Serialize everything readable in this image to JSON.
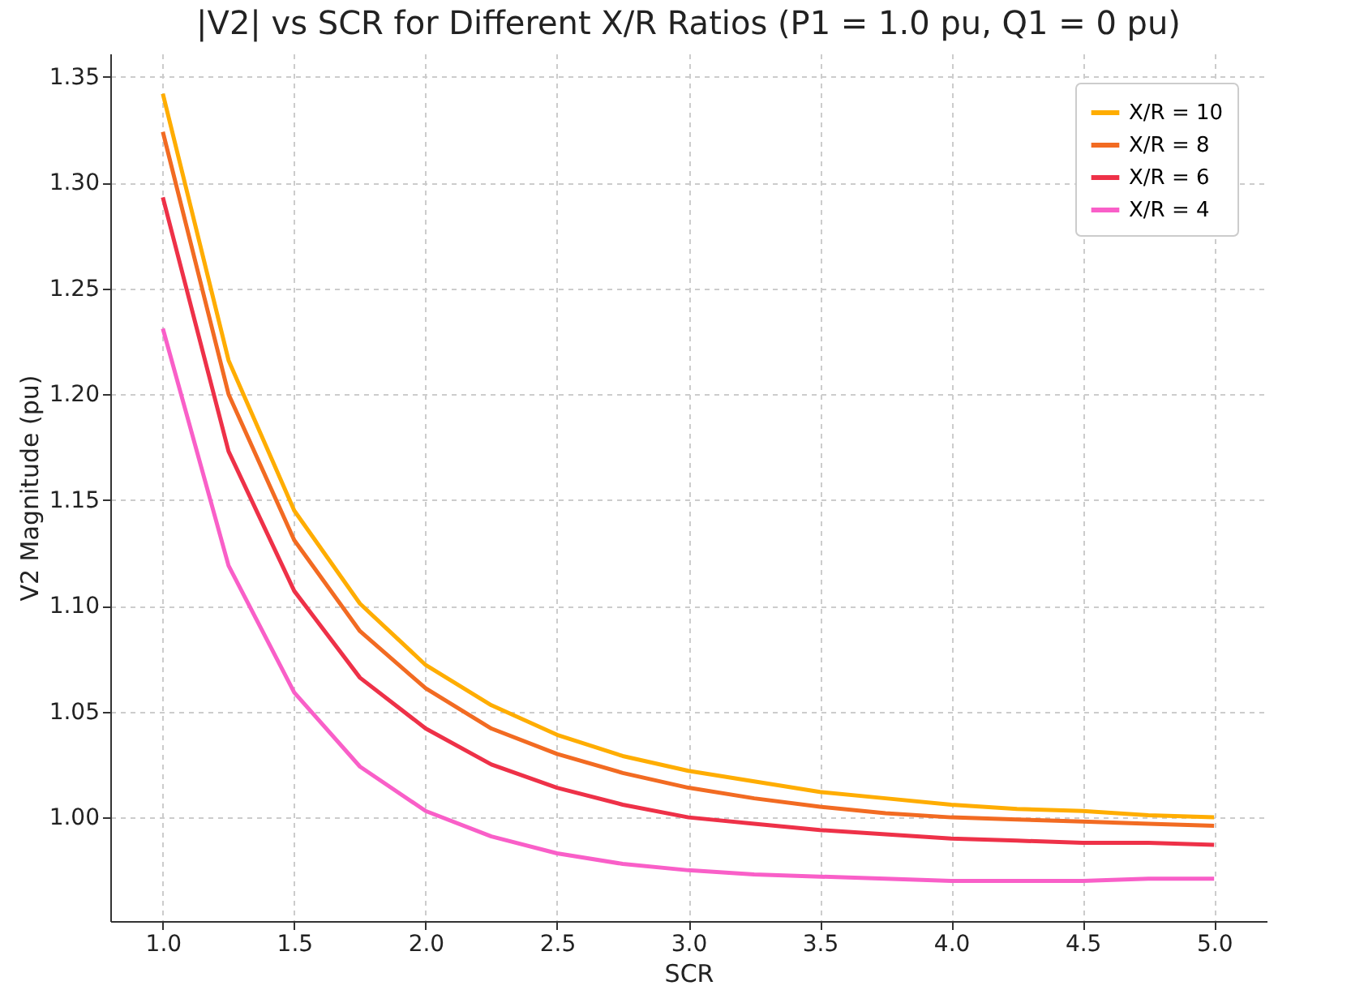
{
  "chart_data": {
    "type": "line",
    "title": "|V2| vs SCR for Different X/R Ratios (P1 = 1.0 pu, Q1 = 0 pu)",
    "xlabel": "SCR",
    "ylabel": "V2 Magnitude (pu)",
    "x": [
      1.0,
      1.25,
      1.5,
      1.75,
      2.0,
      2.25,
      2.5,
      2.75,
      3.0,
      3.25,
      3.5,
      3.75,
      4.0,
      4.25,
      4.5,
      4.75,
      5.0
    ],
    "series": [
      {
        "name": "X/R = 10",
        "color": "#ffad00",
        "values": [
          1.342,
          1.216,
          1.145,
          1.101,
          1.072,
          1.053,
          1.039,
          1.029,
          1.022,
          1.017,
          1.012,
          1.009,
          1.006,
          1.004,
          1.003,
          1.001,
          1.0
        ]
      },
      {
        "name": "X/R = 8",
        "color": "#f26b22",
        "values": [
          1.324,
          1.2,
          1.131,
          1.088,
          1.061,
          1.042,
          1.03,
          1.021,
          1.014,
          1.009,
          1.005,
          1.002,
          1.0,
          0.999,
          0.998,
          0.997,
          0.996
        ]
      },
      {
        "name": "X/R = 6",
        "color": "#ee3148",
        "values": [
          1.293,
          1.173,
          1.107,
          1.066,
          1.042,
          1.025,
          1.014,
          1.006,
          1.0,
          0.997,
          0.994,
          0.992,
          0.99,
          0.989,
          0.988,
          0.988,
          0.987
        ]
      },
      {
        "name": "X/R = 4",
        "color": "#f95fc8",
        "values": [
          1.231,
          1.119,
          1.059,
          1.024,
          1.003,
          0.991,
          0.983,
          0.978,
          0.975,
          0.973,
          0.972,
          0.971,
          0.97,
          0.97,
          0.97,
          0.971,
          0.971
        ]
      }
    ],
    "xlim": [
      0.8,
      5.2
    ],
    "xticks": [
      {
        "value": 1,
        "label": "1.0"
      },
      1.5,
      {
        "value": 2,
        "label": "2.0"
      },
      2.5,
      {
        "value": 3,
        "label": "3.0"
      },
      3.5,
      {
        "value": 4,
        "label": "4.0"
      },
      4.5,
      {
        "value": 5,
        "label": "5.0"
      }
    ],
    "ylim": [
      0.951,
      1.361
    ],
    "yticks": [
      {
        "value": 1,
        "label": "1.00"
      },
      1.05,
      {
        "value": 1.1,
        "label": "1.10"
      },
      1.15,
      {
        "value": 1.2,
        "label": "1.20"
      },
      1.25,
      {
        "value": 1.3,
        "label": "1.30"
      },
      1.35
    ],
    "grid": true,
    "legend": "top right",
    "marker": "none",
    "line_style": "solid"
  }
}
